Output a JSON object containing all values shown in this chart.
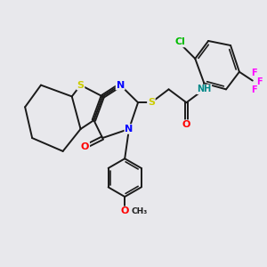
{
  "bg_color": "#e8e8ec",
  "bond_color": "#1a1a1a",
  "bond_width": 1.4,
  "atom_colors": {
    "S": "#cccc00",
    "N": "#0000ff",
    "O": "#ff0000",
    "Cl": "#00bb00",
    "F": "#ff00ff",
    "H": "#008888",
    "C": "#1a1a1a"
  },
  "figsize": [
    3.0,
    3.0
  ],
  "dpi": 100
}
